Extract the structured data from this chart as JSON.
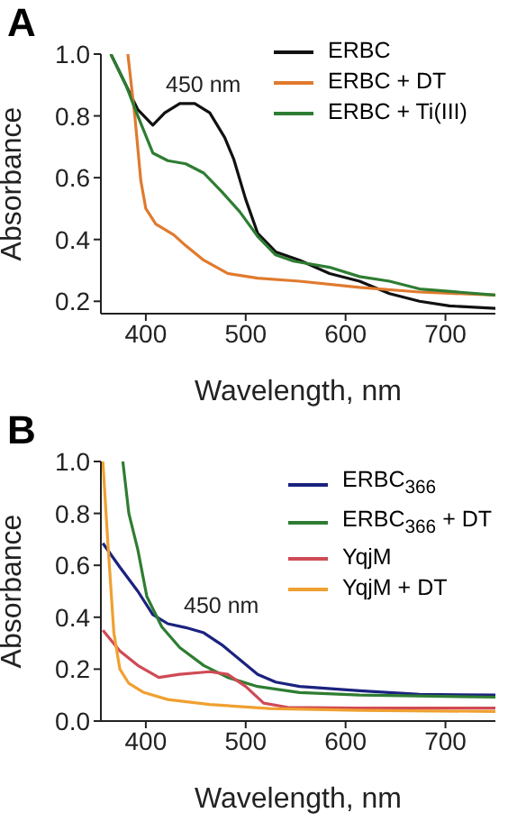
{
  "chart_data": [
    {
      "type": "line",
      "title": "A",
      "xlabel": "Wavelength, nm",
      "ylabel": "Absorbance",
      "xlim": [
        355,
        750
      ],
      "xticks": [
        400,
        500,
        600,
        700
      ],
      "ylim": [
        0.16,
        1.0
      ],
      "yticks": [
        {
          "value": 0.2,
          "label": "0.2"
        },
        {
          "value": 0.4,
          "label": "0.4"
        },
        {
          "value": 0.6,
          "label": "0.6"
        },
        {
          "value": 0.8,
          "label": "0.8"
        },
        {
          "value": 1.0,
          "label": "1.0"
        }
      ],
      "legend": "top right",
      "annotations": [
        "450 nm"
      ],
      "series": [
        {
          "name": "ERBC",
          "color": "#111111",
          "x": [
            365,
            374,
            392,
            407,
            419,
            434,
            449,
            464,
            479,
            488,
            500,
            512,
            530,
            554,
            584,
            614,
            644,
            674,
            704,
            750
          ],
          "values": [
            1.0,
            0.94,
            0.82,
            0.77,
            0.81,
            0.84,
            0.84,
            0.81,
            0.73,
            0.66,
            0.53,
            0.42,
            0.36,
            0.333,
            0.29,
            0.265,
            0.225,
            0.2,
            0.185,
            0.177
          ]
        },
        {
          "name": "ERBC + DT",
          "color": "#e07a2e",
          "x": [
            382,
            389,
            395,
            400,
            410,
            428,
            440,
            458,
            482,
            512,
            554,
            614,
            674,
            750
          ],
          "values": [
            1.0,
            0.8,
            0.59,
            0.5,
            0.45,
            0.415,
            0.38,
            0.333,
            0.29,
            0.275,
            0.265,
            0.245,
            0.23,
            0.22
          ]
        },
        {
          "name": "ERBC + Ti(III)",
          "color": "#2e7d32",
          "x": [
            365,
            380,
            392,
            407,
            422,
            440,
            458,
            476,
            494,
            512,
            530,
            548,
            584,
            614,
            644,
            674,
            750
          ],
          "values": [
            1.0,
            0.9,
            0.8,
            0.68,
            0.655,
            0.645,
            0.615,
            0.555,
            0.49,
            0.41,
            0.35,
            0.33,
            0.31,
            0.28,
            0.265,
            0.24,
            0.22
          ]
        }
      ]
    },
    {
      "type": "line",
      "title": "B",
      "xlabel": "Wavelength, nm",
      "ylabel": "Absorbance",
      "xlim": [
        355,
        750
      ],
      "xticks": [
        400,
        500,
        600,
        700
      ],
      "ylim": [
        0,
        1.0
      ],
      "yticks": [
        {
          "value": 0,
          "label": "0.0"
        },
        {
          "value": 0.2,
          "label": "0.2"
        },
        {
          "value": 0.4,
          "label": "0.4"
        },
        {
          "value": 0.6,
          "label": "0.6"
        },
        {
          "value": 0.8,
          "label": "0.8"
        },
        {
          "value": 1.0,
          "label": "1.0"
        }
      ],
      "legend": "top right",
      "annotations": [
        "450 nm"
      ],
      "series": [
        {
          "name": "ERBC$_{366}$",
          "color": "#1a237e",
          "x": [
            357,
            374,
            392,
            407,
            422,
            440,
            458,
            476,
            494,
            512,
            530,
            554,
            614,
            674,
            750
          ],
          "values": [
            0.685,
            0.593,
            0.5,
            0.41,
            0.375,
            0.36,
            0.34,
            0.294,
            0.237,
            0.18,
            0.15,
            0.133,
            0.117,
            0.103,
            0.1
          ]
        },
        {
          "name": "ERBC$_{366}$ + DT",
          "color": "#2e7d32",
          "x": [
            377,
            383,
            392,
            401,
            416,
            434,
            458,
            482,
            512,
            554,
            614,
            750
          ],
          "values": [
            1.0,
            0.8,
            0.66,
            0.48,
            0.363,
            0.283,
            0.214,
            0.168,
            0.133,
            0.11,
            0.1,
            0.092
          ]
        },
        {
          "name": "YqjM",
          "color": "#d04a55",
          "x": [
            357,
            374,
            392,
            413,
            434,
            464,
            482,
            500,
            518,
            542,
            614,
            750
          ],
          "values": [
            0.35,
            0.27,
            0.214,
            0.168,
            0.18,
            0.19,
            0.18,
            0.133,
            0.069,
            0.053,
            0.05,
            0.05
          ]
        },
        {
          "name": "YqjM + DT",
          "color": "#f0a030",
          "x": [
            357,
            362,
            368,
            374,
            383,
            398,
            422,
            464,
            524,
            614,
            750
          ],
          "values": [
            1.0,
            0.685,
            0.34,
            0.2,
            0.145,
            0.11,
            0.083,
            0.064,
            0.048,
            0.041,
            0.037
          ]
        }
      ]
    }
  ]
}
